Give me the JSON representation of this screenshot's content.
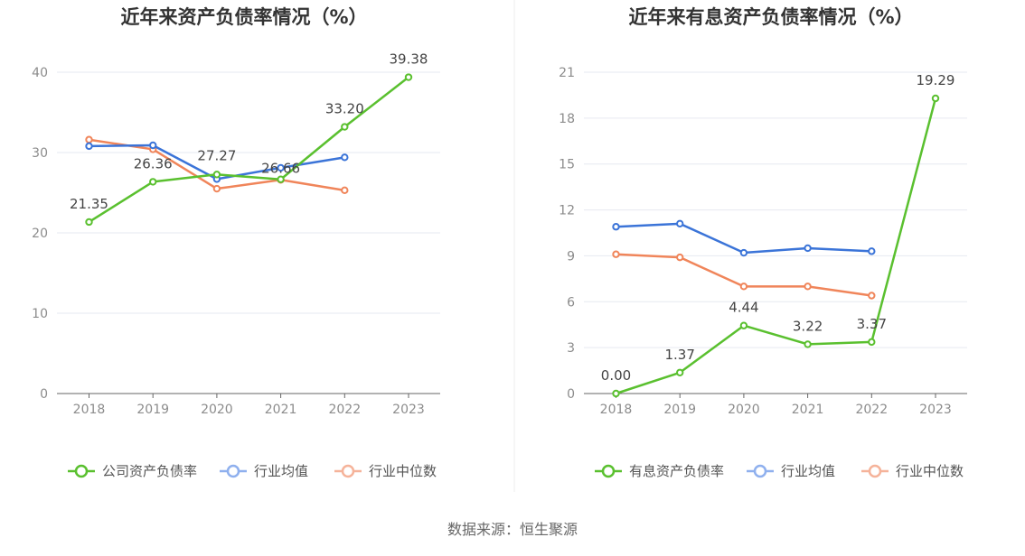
{
  "colors": {
    "company": "#5ac02f",
    "avg": "#3b74d8",
    "median": "#f0855a",
    "avg_legend": "#8fb0ee",
    "median_legend": "#f5b39a",
    "grid": "#e6e9f0",
    "axis": "#666666",
    "divider": "#eeeeee"
  },
  "chart_data": [
    {
      "type": "line",
      "title": "近年来资产负债率情况（%）",
      "categories": [
        "2018",
        "2019",
        "2020",
        "2021",
        "2022",
        "2023"
      ],
      "yticks": [
        "0",
        "10",
        "20",
        "30",
        "40"
      ],
      "ylim": [
        0,
        40
      ],
      "series": [
        {
          "name": "公司资产负债率",
          "key": "company",
          "values": [
            21.35,
            26.36,
            27.27,
            26.66,
            33.2,
            39.38
          ],
          "labels": [
            "21.35",
            "26.36",
            "27.27",
            "26.66",
            "33.20",
            "39.38"
          ]
        },
        {
          "name": "行业均值",
          "key": "avg",
          "values": [
            30.8,
            30.9,
            26.7,
            28.1,
            29.4,
            null
          ]
        },
        {
          "name": "行业中位数",
          "key": "median",
          "values": [
            31.6,
            30.4,
            25.5,
            26.6,
            25.3,
            null
          ]
        }
      ]
    },
    {
      "type": "line",
      "title": "近年来有息资产负债率情况（%）",
      "categories": [
        "2018",
        "2019",
        "2020",
        "2021",
        "2022",
        "2023"
      ],
      "yticks": [
        "0",
        "3",
        "6",
        "9",
        "12",
        "15",
        "18",
        "21"
      ],
      "ylim": [
        0,
        21
      ],
      "series": [
        {
          "name": "有息资产负债率",
          "key": "company",
          "values": [
            0.0,
            1.37,
            4.44,
            3.22,
            3.37,
            19.29
          ],
          "labels": [
            "0.00",
            "1.37",
            "4.44",
            "3.22",
            "3.37",
            "19.29"
          ]
        },
        {
          "name": "行业均值",
          "key": "avg",
          "values": [
            10.9,
            11.1,
            9.2,
            9.5,
            9.3,
            null
          ]
        },
        {
          "name": "行业中位数",
          "key": "median",
          "values": [
            9.1,
            8.9,
            7.0,
            7.0,
            6.4,
            null
          ]
        }
      ]
    }
  ],
  "source": "数据来源：恒生聚源"
}
